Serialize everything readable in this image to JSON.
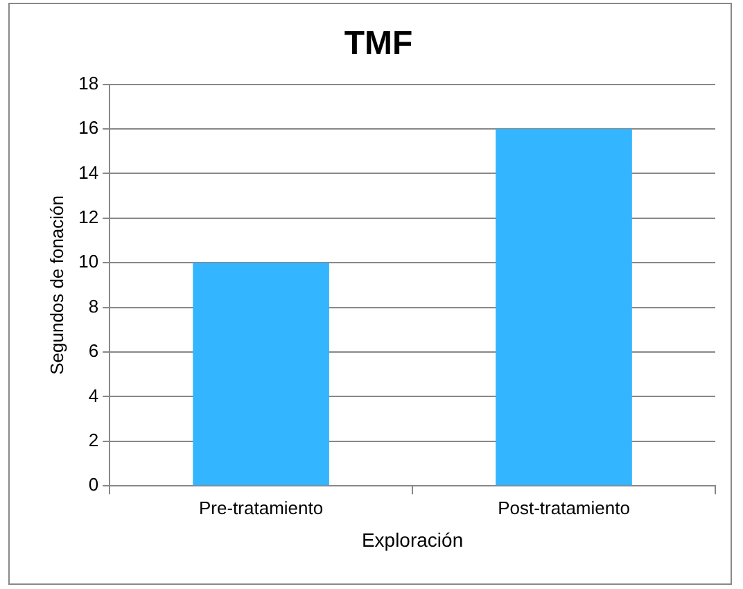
{
  "chart_data": {
    "type": "bar",
    "title": "TMF",
    "xlabel": "Exploración",
    "ylabel": "Segundos de fonación",
    "categories": [
      "Pre-tratamiento",
      "Post-tratamiento"
    ],
    "values": [
      10,
      16
    ],
    "color": "#33b5ff",
    "ylim": [
      0,
      18
    ],
    "yticks": [
      0,
      2,
      4,
      6,
      8,
      10,
      12,
      14,
      16,
      18
    ],
    "grid": "y",
    "legend": false
  }
}
